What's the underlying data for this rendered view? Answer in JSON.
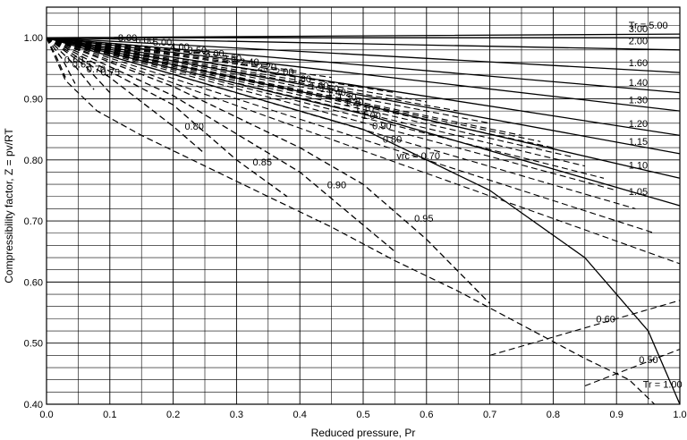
{
  "chart_data": {
    "type": "line",
    "title": "",
    "xlabel": "Reduced pressure, Pr",
    "ylabel": "Compressibility factor, Z = pv/RT",
    "xlim": [
      0.0,
      1.0
    ],
    "ylim": [
      0.4,
      1.05
    ],
    "x_ticks": [
      "0.0",
      "0.1",
      "0.2",
      "0.3",
      "0.4",
      "0.5",
      "0.6",
      "0.7",
      "0.8",
      "0.9",
      "1.0"
    ],
    "y_ticks": [
      "0.40",
      "0.50",
      "0.60",
      "0.70",
      "0.80",
      "0.90",
      "1.00"
    ],
    "grid": true,
    "isotherm_series": [
      {
        "name": "Tr = 5.00",
        "label": "Tr = 5.00",
        "x": [
          0,
          0.5,
          1.0
        ],
        "y": [
          1.0,
          1.003,
          1.006
        ]
      },
      {
        "name": "3.00",
        "label": "3.00",
        "x": [
          0,
          0.5,
          1.0
        ],
        "y": [
          1.0,
          1.0,
          1.0
        ]
      },
      {
        "name": "2.00",
        "label": "2.00",
        "x": [
          0,
          0.5,
          1.0
        ],
        "y": [
          1.0,
          0.99,
          0.98
        ]
      },
      {
        "name": "1.60",
        "label": "1.60",
        "x": [
          0,
          0.5,
          1.0
        ],
        "y": [
          1.0,
          0.972,
          0.943
        ]
      },
      {
        "name": "1.40",
        "label": "1.40",
        "x": [
          0,
          0.5,
          1.0
        ],
        "y": [
          1.0,
          0.955,
          0.91
        ]
      },
      {
        "name": "1.30",
        "label": "1.30",
        "x": [
          0,
          0.5,
          1.0
        ],
        "y": [
          1.0,
          0.94,
          0.88
        ]
      },
      {
        "name": "1.20",
        "label": "1.20",
        "x": [
          0,
          0.5,
          1.0
        ],
        "y": [
          1.0,
          0.92,
          0.84
        ]
      },
      {
        "name": "1.15",
        "label": "1.15",
        "x": [
          0,
          0.5,
          1.0
        ],
        "y": [
          1.0,
          0.905,
          0.81
        ]
      },
      {
        "name": "1.10",
        "label": "1.10",
        "x": [
          0,
          0.5,
          1.0
        ],
        "y": [
          1.0,
          0.89,
          0.77
        ]
      },
      {
        "name": "1.05",
        "label": "1.05",
        "x": [
          0,
          0.5,
          1.0
        ],
        "y": [
          1.0,
          0.875,
          0.725
        ]
      },
      {
        "name": "Tr = 1.00",
        "label": "Tr = 1.00",
        "x": [
          0,
          0.5,
          0.7,
          0.85,
          0.95,
          1.0
        ],
        "y": [
          1.0,
          0.85,
          0.75,
          0.64,
          0.52,
          0.4
        ]
      },
      {
        "name": "0.95",
        "label": "0.95",
        "x": [
          0,
          0.2,
          0.4,
          0.5,
          0.6,
          0.7
        ],
        "y": [
          1.0,
          0.92,
          0.82,
          0.76,
          0.67,
          0.565
        ]
      },
      {
        "name": "0.90",
        "label": "0.90",
        "x": [
          0,
          0.2,
          0.4,
          0.55
        ],
        "y": [
          1.0,
          0.905,
          0.78,
          0.65
        ]
      },
      {
        "name": "0.85",
        "label": "0.85",
        "x": [
          0,
          0.2,
          0.3,
          0.38
        ],
        "y": [
          1.0,
          0.89,
          0.8,
          0.74
        ]
      },
      {
        "name": "0.80",
        "label": "0.80",
        "x": [
          0,
          0.1,
          0.2,
          0.25
        ],
        "y": [
          1.0,
          0.935,
          0.855,
          0.81
        ]
      },
      {
        "name": "0.75",
        "label": "0.75",
        "x": [
          0,
          0.06,
          0.1
        ],
        "y": [
          1.0,
          0.955,
          0.91
        ]
      },
      {
        "name": "0.70",
        "label": "0.70",
        "x": [
          0,
          0.04,
          0.075
        ],
        "y": [
          1.0,
          0.96,
          0.915
        ]
      },
      {
        "name": "0.65",
        "label": "0.65",
        "x": [
          0,
          0.025,
          0.045
        ],
        "y": [
          1.0,
          0.965,
          0.925
        ]
      },
      {
        "name": "0.60",
        "label": "0.60",
        "x": [
          0,
          0.015,
          0.03
        ],
        "y": [
          1.0,
          0.97,
          0.935
        ]
      }
    ],
    "saturation_curve": {
      "x": [
        0.0,
        0.03,
        0.08,
        0.15,
        0.25,
        0.35,
        0.45,
        0.55,
        0.65,
        0.75,
        0.85,
        0.92,
        0.96
      ],
      "y": [
        1.0,
        0.93,
        0.88,
        0.84,
        0.79,
        0.74,
        0.69,
        0.635,
        0.585,
        0.53,
        0.475,
        0.44,
        0.4
      ]
    },
    "volume_series": [
      {
        "name": "8.00",
        "label": "8.00",
        "x": [
          0.0,
          0.2
        ],
        "y": [
          1.0,
          0.982
        ]
      },
      {
        "name": "6.00",
        "label": "6.00",
        "x": [
          0.0,
          0.25
        ],
        "y": [
          1.0,
          0.975
        ]
      },
      {
        "name": "5.00",
        "label": "5.00",
        "x": [
          0.0,
          0.3
        ],
        "y": [
          1.0,
          0.968
        ]
      },
      {
        "name": "4.00",
        "label": "4.00",
        "x": [
          0.0,
          0.35
        ],
        "y": [
          1.0,
          0.955
        ]
      },
      {
        "name": "3.50",
        "label": "3.50",
        "x": [
          0.0,
          0.4
        ],
        "y": [
          1.0,
          0.945
        ]
      },
      {
        "name": "3.00",
        "label": "3.00",
        "x": [
          0.0,
          0.45
        ],
        "y": [
          1.0,
          0.935
        ]
      },
      {
        "name": "2.50",
        "label": "2.50",
        "x": [
          0.0,
          0.5
        ],
        "y": [
          1.0,
          0.92
        ]
      },
      {
        "name": "2.40",
        "label": "2.40",
        "x": [
          0.0,
          0.55
        ],
        "y": [
          1.0,
          0.91
        ]
      },
      {
        "name": "2.20",
        "label": "2.20",
        "x": [
          0.0,
          0.6
        ],
        "y": [
          1.0,
          0.895
        ]
      },
      {
        "name": "2.00",
        "label": "2.00",
        "x": [
          0.0,
          0.65
        ],
        "y": [
          1.0,
          0.88
        ]
      },
      {
        "name": "1.80",
        "label": "1.80",
        "x": [
          0.0,
          0.7
        ],
        "y": [
          1.0,
          0.86
        ]
      },
      {
        "name": "1.60",
        "label": "1.60",
        "x": [
          0.0,
          0.75
        ],
        "y": [
          1.0,
          0.84
        ]
      },
      {
        "name": "1.50",
        "label": "1.50",
        "x": [
          0.0,
          0.78
        ],
        "y": [
          1.0,
          0.83
        ]
      },
      {
        "name": "1.40",
        "label": "1.40",
        "x": [
          0.0,
          0.8
        ],
        "y": [
          1.0,
          0.82
        ]
      },
      {
        "name": "1.30",
        "label": "1.30",
        "x": [
          0.0,
          0.83
        ],
        "y": [
          1.0,
          0.805
        ]
      },
      {
        "name": "1.20",
        "label": "1.20",
        "x": [
          0.0,
          0.85
        ],
        "y": [
          1.0,
          0.79
        ]
      },
      {
        "name": "1.10",
        "label": "1.10",
        "x": [
          0.0,
          0.88
        ],
        "y": [
          1.0,
          0.77
        ]
      },
      {
        "name": "1.00",
        "label": "1.00",
        "x": [
          0.0,
          0.9
        ],
        "y": [
          1.0,
          0.75
        ]
      },
      {
        "name": "0.90",
        "label": "0.90",
        "x": [
          0.0,
          0.93
        ],
        "y": [
          1.0,
          0.72
        ]
      },
      {
        "name": "0.80",
        "label": "0.80",
        "x": [
          0.0,
          0.96
        ],
        "y": [
          1.0,
          0.68
        ]
      },
      {
        "name": "vrc = 0.70",
        "label": "vrc = 0.70",
        "x": [
          0.0,
          1.0
        ],
        "y": [
          1.0,
          0.63
        ]
      },
      {
        "name": "0.60",
        "label": "0.60",
        "x": [
          0.7,
          1.0
        ],
        "y": [
          0.48,
          0.57
        ]
      },
      {
        "name": "0.50",
        "label": "0.50",
        "x": [
          0.85,
          1.0
        ],
        "y": [
          0.43,
          0.49
        ]
      }
    ]
  }
}
